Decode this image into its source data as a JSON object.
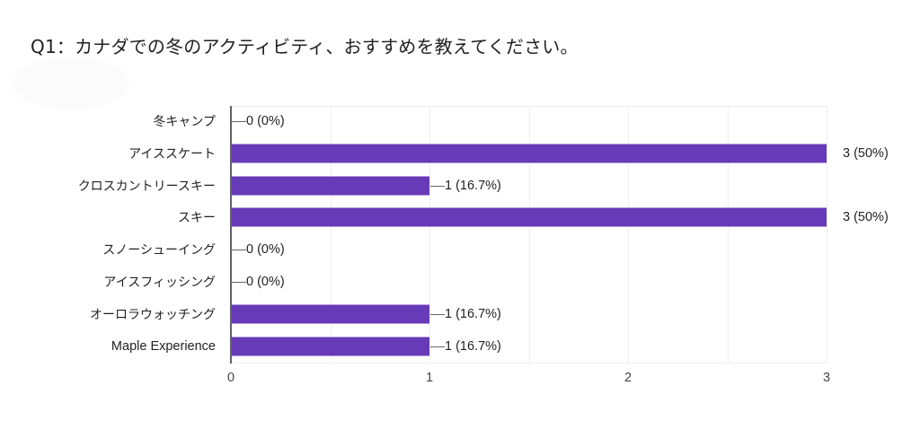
{
  "question": {
    "title": "Q1：カナダでの冬のアクティビティ、おすすめを教えてください。"
  },
  "colors": {
    "bar": "#673ab7",
    "bar_edge": "#b39ddb",
    "grid": "#eeeeee",
    "axis": "#5f6368",
    "text": "#222222"
  },
  "chart_data": {
    "type": "bar",
    "orientation": "horizontal",
    "title": "Q1：カナダでの冬のアクティビティ、おすすめを教えてください。",
    "categories": [
      "冬キャンプ",
      "アイススケート",
      "クロスカントリースキー",
      "スキー",
      "スノーシューイング",
      "アイスフィッシング",
      "オーロラウォッチング",
      "Maple Experience"
    ],
    "values": [
      0,
      3,
      1,
      3,
      0,
      0,
      1,
      1
    ],
    "data_labels": [
      "0 (0%)",
      "3 (50%)",
      "1 (16.7%)",
      "3 (50%)",
      "0 (0%)",
      "0 (0%)",
      "1 (16.7%)",
      "1 (16.7%)"
    ],
    "percentages": [
      0,
      50,
      16.7,
      50,
      0,
      0,
      16.7,
      16.7
    ],
    "xlabel": "",
    "ylabel": "",
    "xlim": [
      0,
      3
    ],
    "x_ticks": [
      "0",
      "1",
      "2",
      "3"
    ],
    "grid": true,
    "legend": "none"
  },
  "rows": [
    {
      "label": "冬キャンプ",
      "value": 0,
      "display": "0 (0%)"
    },
    {
      "label": "アイススケート",
      "value": 3,
      "display": "3 (50%)"
    },
    {
      "label": "クロスカントリースキー",
      "value": 1,
      "display": "1 (16.7%)"
    },
    {
      "label": "スキー",
      "value": 3,
      "display": "3 (50%)"
    },
    {
      "label": "スノーシューイング",
      "value": 0,
      "display": "0 (0%)"
    },
    {
      "label": "アイスフィッシング",
      "value": 0,
      "display": "0 (0%)"
    },
    {
      "label": "オーロラウォッチング",
      "value": 1,
      "display": "1 (16.7%)"
    },
    {
      "label": "Maple Experience",
      "value": 1,
      "display": "1 (16.7%)"
    }
  ],
  "x_axis": {
    "ticks": [
      "0",
      "1",
      "2",
      "3"
    ]
  }
}
